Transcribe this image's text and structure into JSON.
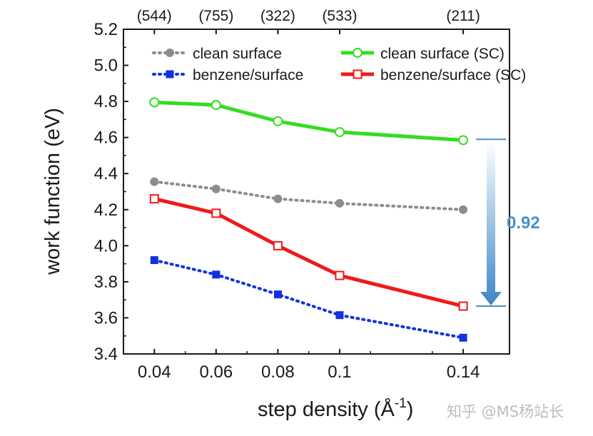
{
  "chart_data": {
    "type": "line",
    "xlabel": "step density (Å",
    "xlabel_sup": "-1",
    "xlabel_close": ")",
    "ylabel": "work function (eV)",
    "xlim": [
      0.03,
      0.155
    ],
    "ylim": [
      3.4,
      5.2
    ],
    "x_ticks": [
      0.04,
      0.06,
      0.08,
      0.1,
      0.14
    ],
    "x_tick_labels": [
      "0.04",
      "0.06",
      "0.08",
      "0.1",
      "0.14"
    ],
    "y_ticks": [
      3.4,
      3.6,
      3.8,
      4.0,
      4.2,
      4.4,
      4.6,
      4.8,
      5.0,
      5.2
    ],
    "y_tick_labels": [
      "3.4",
      "3.6",
      "3.8",
      "4.0",
      "4.2",
      "4.4",
      "4.6",
      "4.8",
      "5.0",
      "5.2"
    ],
    "top_tick_labels": [
      "(544)",
      "(755)",
      "(322)",
      "(533)",
      "(211)"
    ],
    "legend_placement": "top",
    "series": [
      {
        "name": "clean surface",
        "color": "#8c8c8c",
        "marker": "circle-filled",
        "line": "dotted",
        "x": [
          0.04,
          0.06,
          0.08,
          0.1,
          0.14
        ],
        "y": [
          4.355,
          4.315,
          4.26,
          4.235,
          4.2
        ]
      },
      {
        "name": "clean surface (SC)",
        "color": "#33dd22",
        "marker": "circle-open",
        "line": "solid",
        "x": [
          0.04,
          0.06,
          0.08,
          0.1,
          0.14
        ],
        "y": [
          4.795,
          4.78,
          4.69,
          4.63,
          4.585
        ]
      },
      {
        "name": "benzene/surface",
        "color": "#1133dd",
        "marker": "square-filled",
        "line": "dotted",
        "x": [
          0.04,
          0.06,
          0.08,
          0.1,
          0.14
        ],
        "y": [
          3.92,
          3.84,
          3.73,
          3.615,
          3.49
        ]
      },
      {
        "name": "benzene/surface (SC)",
        "color": "#ee1a1a",
        "marker": "square-open",
        "line": "solid",
        "x": [
          0.04,
          0.06,
          0.08,
          0.1,
          0.14
        ],
        "y": [
          4.26,
          4.18,
          4.0,
          3.835,
          3.665
        ]
      }
    ],
    "annotation": {
      "text": "0.92",
      "color": "#4a90c8",
      "x": 0.149,
      "y_from": 4.59,
      "y_to": 3.665
    }
  },
  "watermark": "知乎 @MS杨站长"
}
